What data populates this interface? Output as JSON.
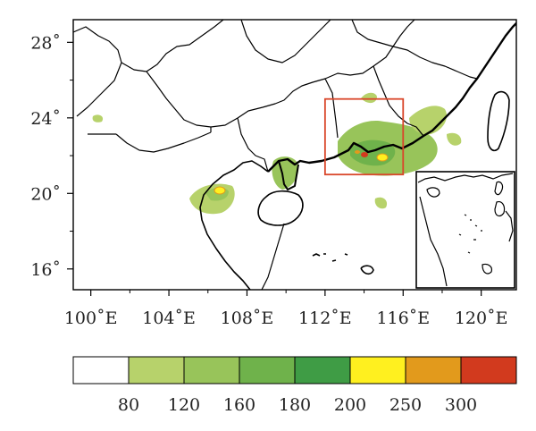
{
  "map": {
    "x_ticks": [
      {
        "value": 100,
        "label": "100˚E"
      },
      {
        "value": 104,
        "label": "104˚E"
      },
      {
        "value": 108,
        "label": "108˚E"
      },
      {
        "value": 112,
        "label": "112˚E"
      },
      {
        "value": 116,
        "label": "116˚E"
      },
      {
        "value": 120,
        "label": "120˚E"
      }
    ],
    "y_ticks": [
      {
        "value": 28,
        "label": "28˚"
      },
      {
        "value": 24,
        "label": "24˚"
      },
      {
        "value": 20,
        "label": "20˚"
      },
      {
        "value": 16,
        "label": "16˚"
      }
    ],
    "lon_range": [
      99.1,
      121.8
    ],
    "lat_range": [
      14.9,
      29.2
    ],
    "focus_box": {
      "lon": [
        112,
        116
      ],
      "lat": [
        21,
        25
      ],
      "color": "#d9472b"
    },
    "colorbar": {
      "colors": [
        "#ffffff",
        "#b7d26b",
        "#98c45a",
        "#6fb24b",
        "#3f9c45",
        "#fff01f",
        "#e29a1c",
        "#d23a1e"
      ],
      "labels": [
        "80",
        "120",
        "160",
        "180",
        "200",
        "250",
        "300"
      ]
    }
  }
}
